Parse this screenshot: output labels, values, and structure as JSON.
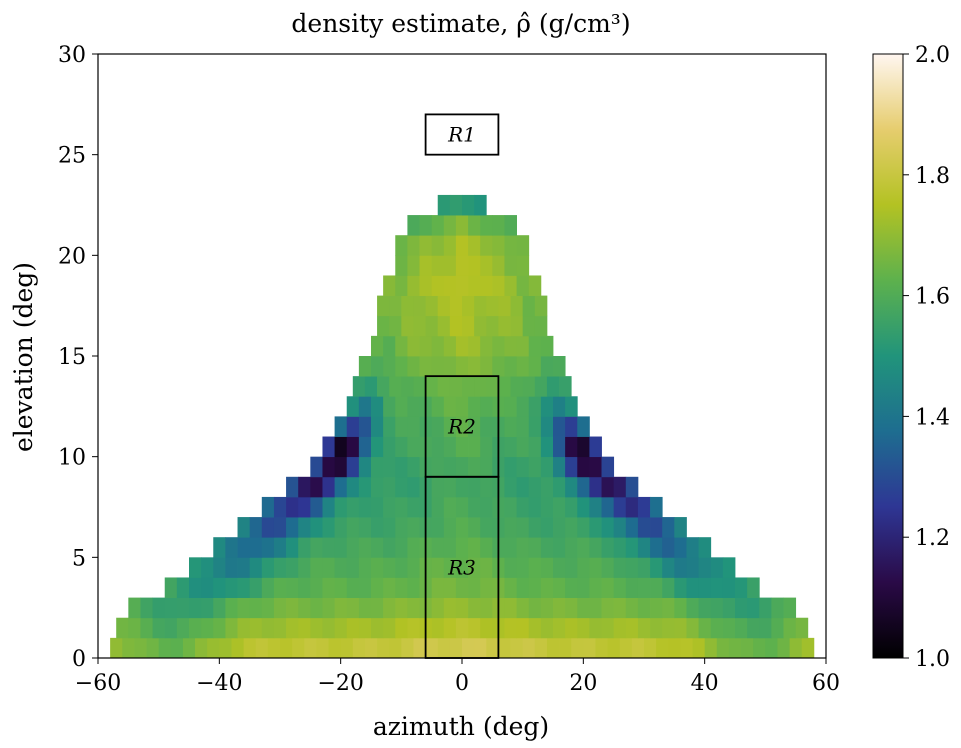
{
  "chart_data": {
    "type": "heatmap",
    "title": "density estimate, ρ̂ (g/cm³)",
    "xlabel": "azimuth (deg)",
    "ylabel": "elevation (deg)",
    "xlim": [
      -60,
      60
    ],
    "ylim": [
      0,
      30
    ],
    "xticks": [
      -60,
      -40,
      -20,
      0,
      20,
      40,
      60
    ],
    "xtick_labels": [
      "−60",
      "−40",
      "−20",
      "0",
      "20",
      "40",
      "60"
    ],
    "yticks": [
      0,
      5,
      10,
      15,
      20,
      25,
      30
    ],
    "ytick_labels": [
      "0",
      "5",
      "10",
      "15",
      "20",
      "25",
      "30"
    ],
    "colorbar": {
      "range": [
        1.0,
        2.0
      ],
      "ticks": [
        1.0,
        1.2,
        1.4,
        1.6,
        1.8,
        2.0
      ],
      "tick_labels": [
        "1.0",
        "1.2",
        "1.4",
        "1.6",
        "1.8",
        "2.0"
      ],
      "colormap": [
        "#000000",
        "#2a0a47",
        "#2e3694",
        "#1e6d90",
        "#21947b",
        "#5db14d",
        "#b3c223",
        "#e6cd6e",
        "#fff6f0"
      ]
    },
    "grid": false,
    "rows": [
      {
        "elev": [
          0,
          1
        ],
        "half_width": 58,
        "base": 1.78,
        "min_val": 1.63
      },
      {
        "elev": [
          1,
          2
        ],
        "half_width": 57,
        "base": 1.72,
        "min_val": 1.58
      },
      {
        "elev": [
          2,
          3
        ],
        "half_width": 55,
        "base": 1.66,
        "min_val": 1.53
      },
      {
        "elev": [
          3,
          4
        ],
        "half_width": 49,
        "base": 1.62,
        "min_val": 1.48
      },
      {
        "elev": [
          4,
          5
        ],
        "half_width": 45,
        "base": 1.6,
        "min_val": 1.42
      },
      {
        "elev": [
          5,
          6
        ],
        "half_width": 41,
        "base": 1.58,
        "min_val": 1.36
      },
      {
        "elev": [
          6,
          7
        ],
        "half_width": 37,
        "base": 1.56,
        "min_val": 1.3
      },
      {
        "elev": [
          7,
          8
        ],
        "half_width": 33,
        "base": 1.55,
        "min_val": 1.22
      },
      {
        "elev": [
          8,
          9
        ],
        "half_width": 29,
        "base": 1.54,
        "min_val": 1.13
      },
      {
        "elev": [
          9,
          10
        ],
        "half_width": 25,
        "base": 1.55,
        "min_val": 1.08
      },
      {
        "elev": [
          10,
          11
        ],
        "half_width": 23,
        "base": 1.57,
        "min_val": 1.05
      },
      {
        "elev": [
          11,
          12
        ],
        "half_width": 21,
        "base": 1.58,
        "min_val": 1.25
      },
      {
        "elev": [
          12,
          13
        ],
        "half_width": 19,
        "base": 1.6,
        "min_val": 1.42
      },
      {
        "elev": [
          13,
          14
        ],
        "half_width": 18,
        "base": 1.62,
        "min_val": 1.52
      },
      {
        "elev": [
          14,
          15
        ],
        "half_width": 17,
        "base": 1.65,
        "min_val": 1.58
      },
      {
        "elev": [
          15,
          16
        ],
        "half_width": 15,
        "base": 1.68,
        "min_val": 1.62
      },
      {
        "elev": [
          16,
          17
        ],
        "half_width": 14,
        "base": 1.7,
        "min_val": 1.64
      },
      {
        "elev": [
          17,
          18
        ],
        "half_width": 14,
        "base": 1.71,
        "min_val": 1.65
      },
      {
        "elev": [
          18,
          19
        ],
        "half_width": 13,
        "base": 1.73,
        "min_val": 1.66
      },
      {
        "elev": [
          19,
          20
        ],
        "half_width": 11,
        "base": 1.72,
        "min_val": 1.65
      },
      {
        "elev": [
          20,
          21
        ],
        "half_width": 11,
        "base": 1.7,
        "min_val": 1.63
      },
      {
        "elev": [
          21,
          22
        ],
        "half_width": 9,
        "base": 1.64,
        "min_val": 1.58
      },
      {
        "elev": [
          22,
          23
        ],
        "half_width": 4,
        "base": 1.52,
        "min_val": 1.5
      }
    ],
    "regions": [
      {
        "label": "R1",
        "x": [
          -6,
          6
        ],
        "y": [
          25,
          27
        ]
      },
      {
        "label": "R2",
        "x": [
          -6,
          6
        ],
        "y": [
          9,
          14
        ]
      },
      {
        "label": "R3",
        "x": [
          -6,
          6
        ],
        "y": [
          0,
          9
        ]
      }
    ]
  }
}
